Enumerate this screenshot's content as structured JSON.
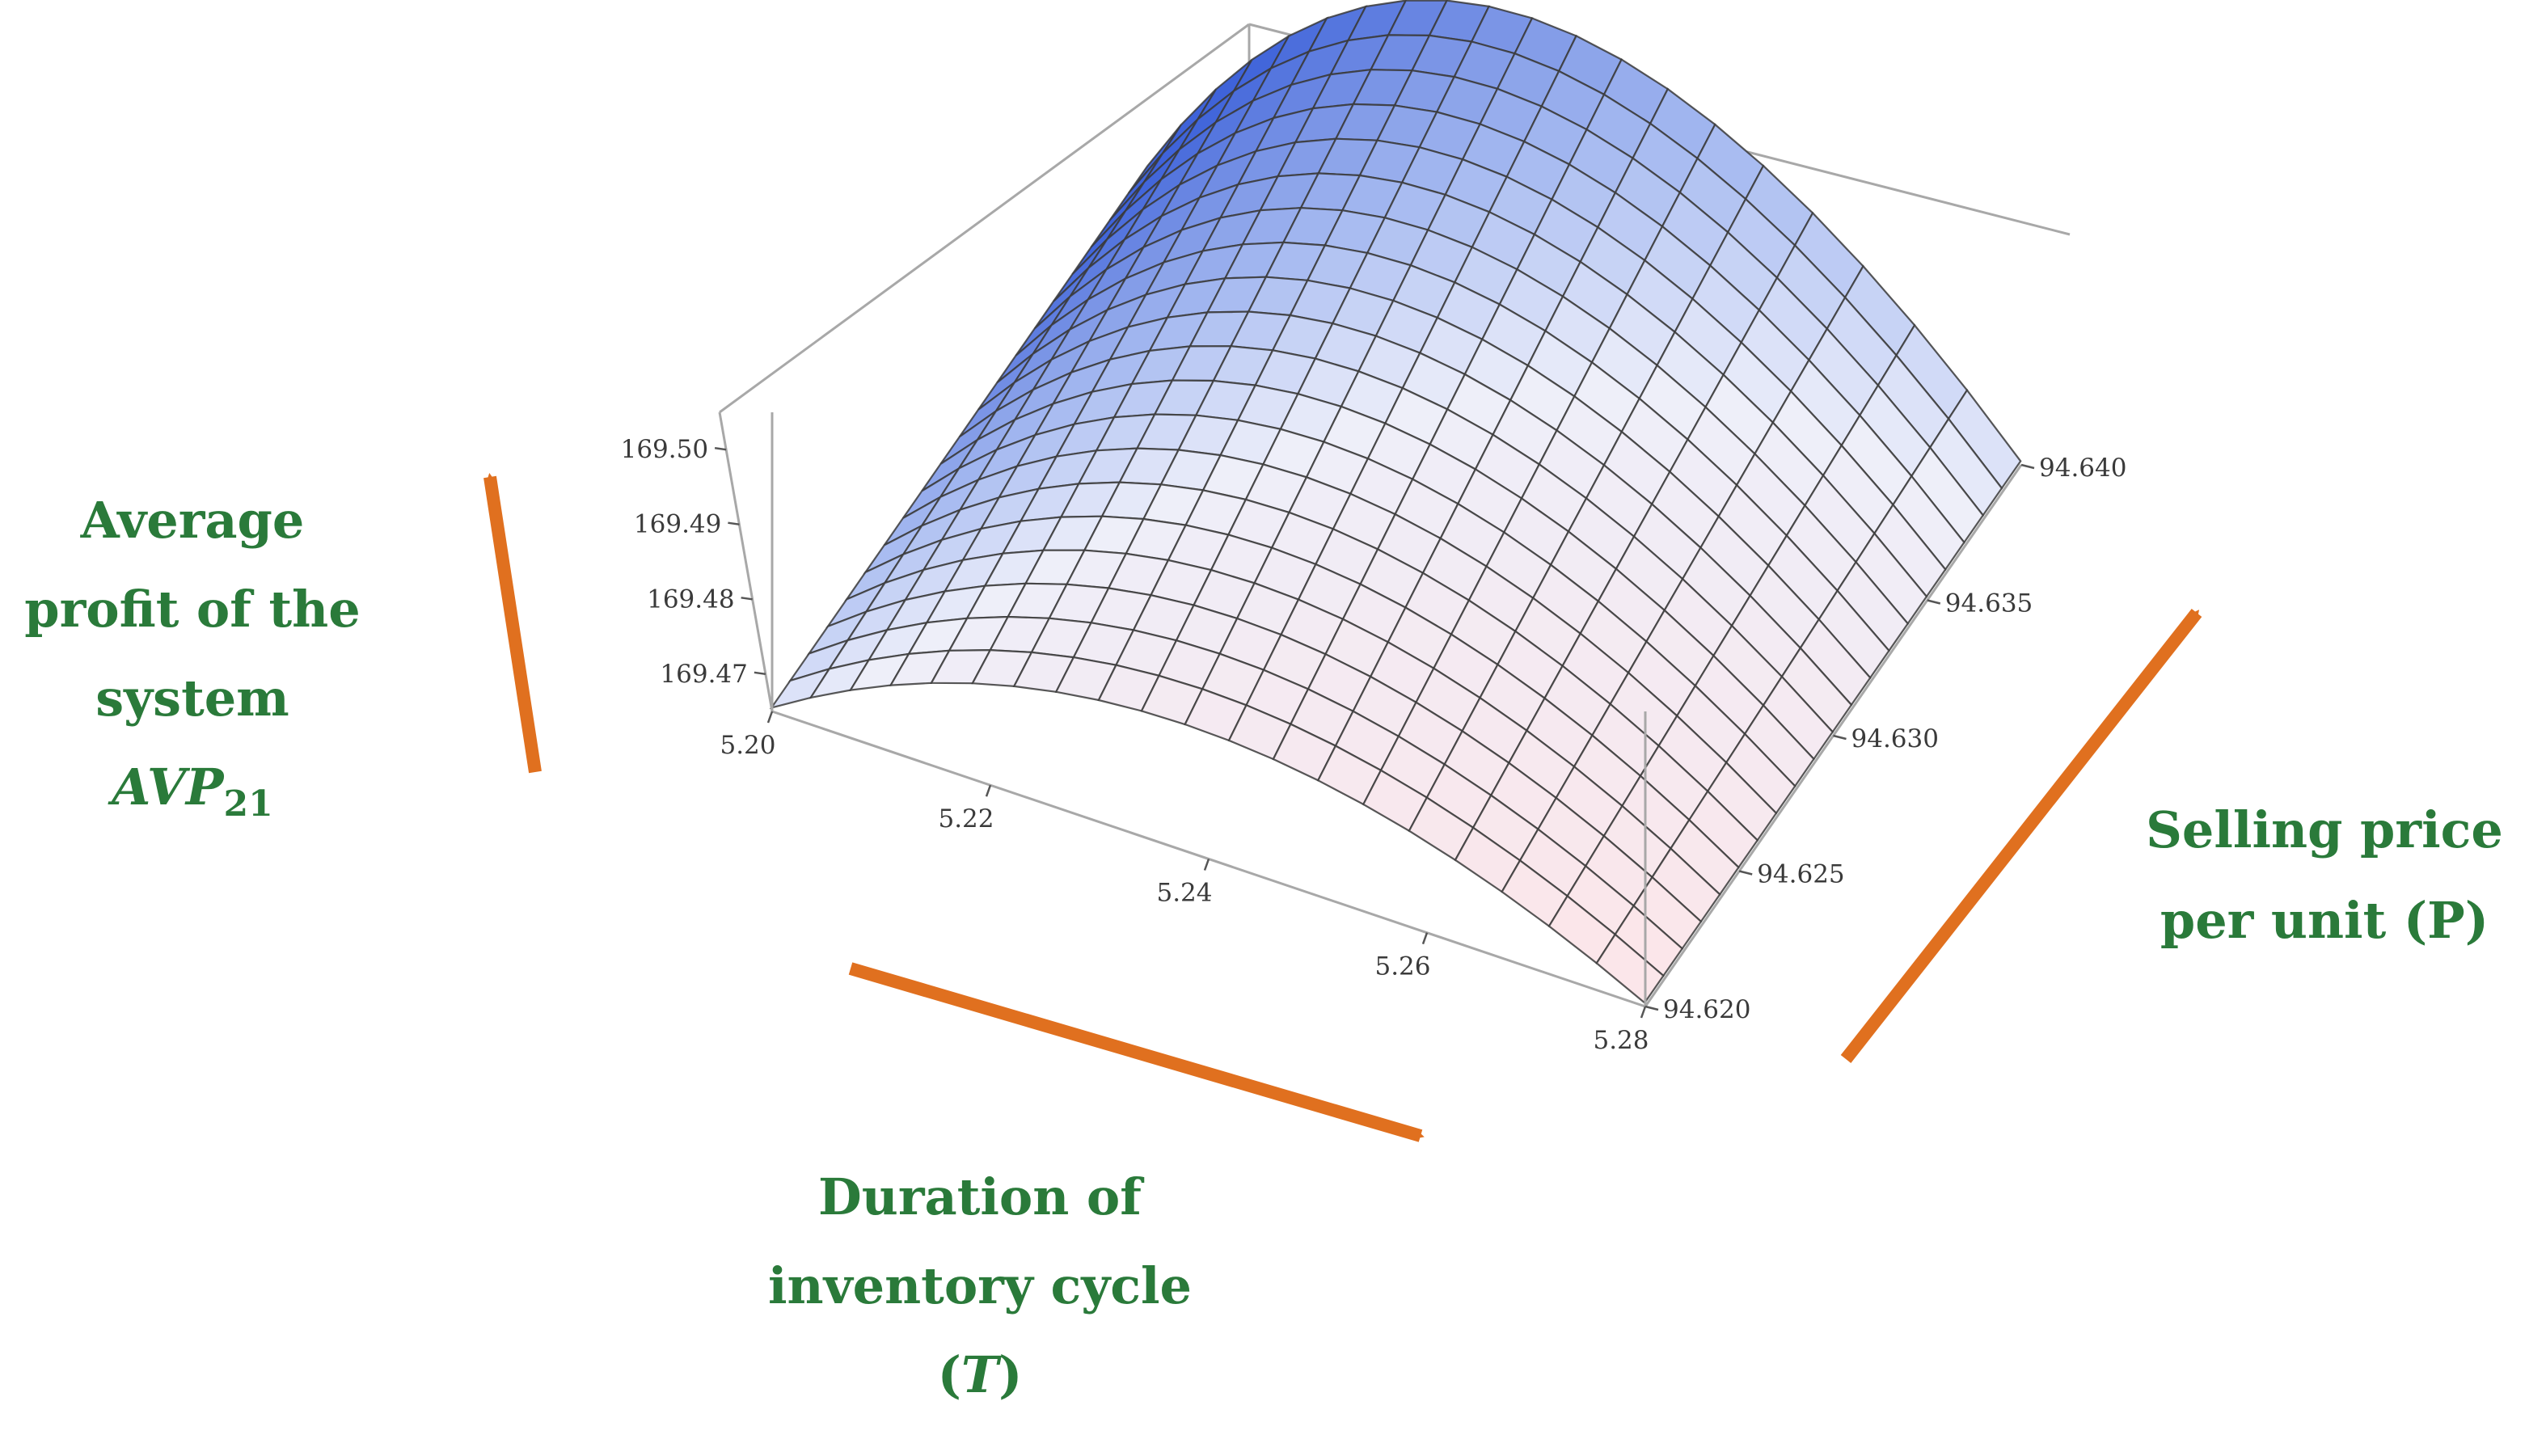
{
  "chart_data": {
    "type": "surface3d",
    "z_label_lines": [
      "Average",
      "profit of the",
      "system"
    ],
    "z_label_symbol": "AVP",
    "z_label_subscript": "21",
    "x_label_lines": [
      "Duration of",
      "inventory cycle"
    ],
    "x_label_symbol": "T",
    "y_label_lines": [
      "Selling price",
      "per unit (P)"
    ],
    "x_ticks": [
      "5.20",
      "5.22",
      "5.24",
      "5.26",
      "5.28"
    ],
    "y_ticks": [
      "94.620",
      "94.625",
      "94.630",
      "94.635",
      "94.640"
    ],
    "z_ticks": [
      "169.47",
      "169.48",
      "169.49",
      "169.50"
    ],
    "x_range": [
      5.2,
      5.28
    ],
    "y_range": [
      94.62,
      94.64
    ],
    "z_range": [
      169.465,
      169.505
    ],
    "peak": {
      "T": 5.24,
      "z_at_P_min": 169.483,
      "z_at_P_max": 169.505
    },
    "grid_divisions": 20,
    "colors": {
      "label": "#2a7a3a",
      "arrow": "#e0701f",
      "surface_high_deep": "#3f63d9",
      "surface_high_light": "#e9f2ff",
      "surface_low": "#fbe6ea",
      "mesh": "#3a3a3a",
      "box": "#a8a8a8"
    }
  }
}
